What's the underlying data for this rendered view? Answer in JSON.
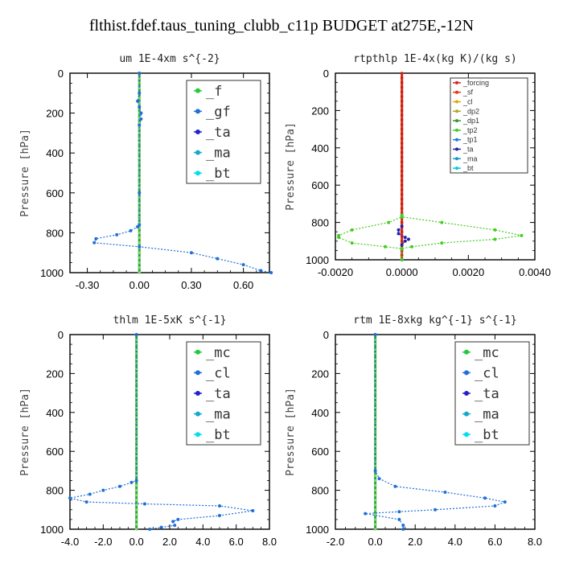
{
  "figure_title": "flthist.fdef.taus_tuning_clubb_c11p  BUDGET at275E,-12N",
  "colors": {
    "f": "#22c93a",
    "gf": "#1e6fd9",
    "ta": "#2222cc",
    "ma": "#11aacc",
    "bt": "#00ddee",
    "mc": "#22c93a",
    "cl": "#1e6fd9",
    "forcing": "#dd2222",
    "sf": "#ee3311",
    "cl_small": "#ddaa00",
    "dp2": "#aaaa22",
    "dp1": "#339933",
    "tp2": "#44cc22",
    "tp1": "#2277dd",
    "ta_small": "#2222aa",
    "ma_small": "#1199cc",
    "bt_small": "#00ccdd",
    "zero_line": "#2aa040"
  },
  "chart_data": [
    {
      "type": "line",
      "title": "um   1E-4xm  s^{-2}",
      "ylabel": "Pressure [hPa]",
      "ylim": [
        1000,
        0
      ],
      "xlim": [
        -0.4,
        0.75
      ],
      "xticks": [
        "-0.30",
        "0.00",
        "0.30",
        "0.60"
      ],
      "xtick_values": [
        -0.3,
        0.0,
        0.3,
        0.6
      ],
      "yticks": [
        "0",
        "200",
        "400",
        "600",
        "800",
        "1000"
      ],
      "legend": [
        "_f",
        "_gf",
        "_ta",
        "_ma",
        "_bt"
      ],
      "series": [
        {
          "name": "_gf",
          "x": [
            0.0,
            0.0,
            -0.01,
            0.0,
            0.01,
            0.01,
            0.0,
            0.0,
            0.0,
            -0.01,
            -0.05,
            -0.13,
            -0.25,
            -0.26,
            0.0,
            0.3,
            0.45,
            0.6,
            0.7,
            0.76
          ],
          "y": [
            0,
            100,
            140,
            170,
            200,
            230,
            260,
            600,
            760,
            770,
            790,
            810,
            830,
            850,
            870,
            900,
            930,
            960,
            990,
            1000
          ]
        }
      ]
    },
    {
      "type": "line",
      "title": "rtpthlp   1E-4x(kg K)/(kg s)",
      "ylabel": "Pressure [hPa]",
      "ylim": [
        1000,
        0
      ],
      "xlim": [
        -0.002,
        0.004
      ],
      "xticks": [
        "-0.0020",
        "0.0000",
        "0.0020",
        "0.0040"
      ],
      "xtick_values": [
        -0.002,
        0.0,
        0.002,
        0.004
      ],
      "yticks": [
        "0",
        "200",
        "400",
        "600",
        "800",
        "1000"
      ],
      "legend": [
        "_forcing",
        "_sf",
        "_cl",
        "_dp2",
        "_dp1",
        "_tp2",
        "_tp1",
        "_ta",
        "_ma",
        "_bt"
      ],
      "series": [
        {
          "name": "_tp2",
          "x": [
            0.0,
            0.0,
            -0.0004,
            -0.0015,
            -0.0019,
            -0.0019,
            -0.0015,
            -0.0005,
            0.0,
            0.0
          ],
          "y": [
            760,
            770,
            800,
            840,
            870,
            880,
            910,
            930,
            940,
            1000
          ]
        },
        {
          "name": "_tp2",
          "x": [
            0.0,
            0.0,
            0.0012,
            0.0028,
            0.0036,
            0.0028,
            0.0012,
            0.0003,
            0.0,
            0.0
          ],
          "y": [
            760,
            770,
            800,
            840,
            870,
            890,
            910,
            930,
            940,
            1000
          ]
        },
        {
          "name": "_ta",
          "x": [
            0.0,
            -0.0001,
            -0.0001,
            0.0001,
            0.0002,
            0.0001,
            0.0
          ],
          "y": [
            820,
            840,
            860,
            880,
            890,
            900,
            920
          ]
        }
      ]
    },
    {
      "type": "line",
      "title": "thlm   1E-5xK  s^{-1}",
      "ylabel": "Pressure [hPa]",
      "ylim": [
        1000,
        0
      ],
      "xlim": [
        -4.0,
        8.0
      ],
      "xticks": [
        "-4.0",
        "-2.0",
        "0.0",
        "2.0",
        "4.0",
        "6.0",
        "8.0"
      ],
      "xtick_values": [
        -4.0,
        -2.0,
        0.0,
        2.0,
        4.0,
        6.0,
        8.0
      ],
      "yticks": [
        "0",
        "200",
        "400",
        "600",
        "800",
        "1000"
      ],
      "legend": [
        "_mc",
        "_cl",
        "_ta",
        "_ma",
        "_bt"
      ],
      "series": [
        {
          "name": "_cl",
          "x": [
            0.0,
            0.0,
            -0.3,
            -1.0,
            -2.0,
            -2.8,
            -4.0,
            -3.0,
            0.5,
            5.0,
            7.0,
            5.0,
            2.5,
            2.2,
            2.3,
            1.5,
            0.8
          ],
          "y": [
            0,
            750,
            760,
            780,
            800,
            820,
            840,
            860,
            870,
            880,
            905,
            930,
            950,
            960,
            980,
            990,
            1000
          ]
        }
      ]
    },
    {
      "type": "line",
      "title": "rtm   1E-8xkg  kg^{-1}  s^{-1}",
      "ylabel": "Pressure [hPa]",
      "ylim": [
        1000,
        0
      ],
      "xlim": [
        -2.0,
        8.0
      ],
      "xticks": [
        "-2.0",
        "0.0",
        "2.0",
        "4.0",
        "6.0",
        "8.0"
      ],
      "xtick_values": [
        -2.0,
        0.0,
        2.0,
        4.0,
        6.0,
        8.0
      ],
      "yticks": [
        "0",
        "200",
        "400",
        "600",
        "800",
        "1000"
      ],
      "legend": [
        "_mc",
        "_cl",
        "_ta",
        "_ma",
        "_bt"
      ],
      "series": [
        {
          "name": "_cl",
          "x": [
            0.0,
            0.0,
            0.2,
            1.0,
            3.5,
            5.5,
            6.5,
            6.0,
            3.0,
            1.2,
            -0.5,
            1.2,
            1.4,
            1.4
          ],
          "y": [
            0,
            700,
            740,
            780,
            810,
            840,
            860,
            880,
            900,
            910,
            920,
            950,
            980,
            1000
          ]
        }
      ]
    }
  ]
}
